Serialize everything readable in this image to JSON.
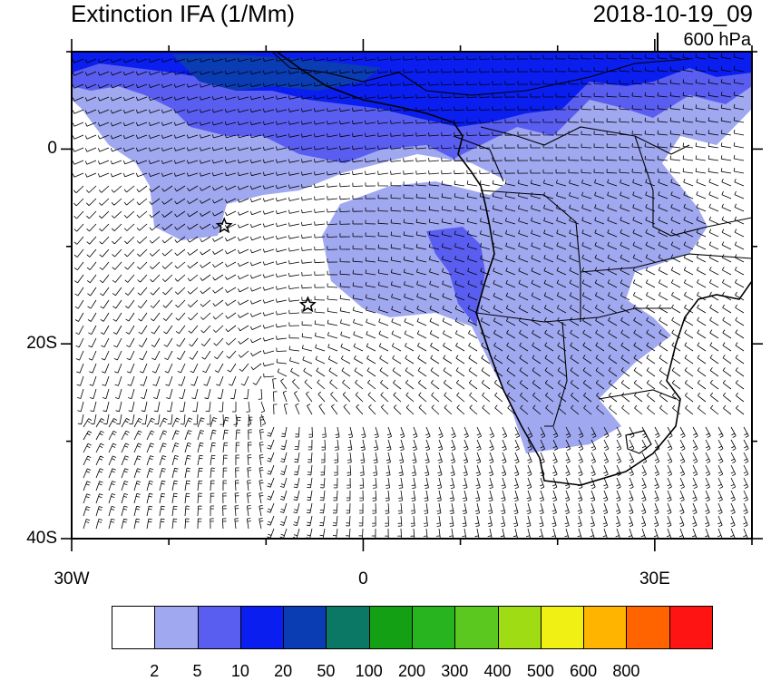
{
  "title": "Extinction IFA (1/Mm)",
  "datetime": "2018-10-19_09",
  "pressure_level": "600 hPa",
  "axes": {
    "lon_ticks": [
      {
        "label": "30W",
        "lon": -30
      },
      {
        "label": "0",
        "lon": 0
      },
      {
        "label": "30E",
        "lon": 30
      }
    ],
    "lat_ticks": [
      {
        "label": "0",
        "lat": 0
      },
      {
        "label": "20S",
        "lat": -20
      },
      {
        "label": "40S",
        "lat": -40
      }
    ],
    "lon_range": [
      -30,
      40
    ],
    "lat_range": [
      -40,
      10
    ]
  },
  "colorbar": {
    "colors": [
      "#ffffff",
      "#a0a8f0",
      "#5a5ef0",
      "#0a1ef0",
      "#0a3cb4",
      "#0a7864",
      "#14a014",
      "#28b41e",
      "#5ac81e",
      "#a0dc14",
      "#f0f014",
      "#ffb400",
      "#ff6400",
      "#ff1414"
    ],
    "labels": [
      "2",
      "5",
      "10",
      "20",
      "50",
      "100",
      "200",
      "300",
      "400",
      "500",
      "600",
      "800"
    ]
  },
  "markers": [
    {
      "name": "star",
      "lon": -14.3,
      "lat": -7.9
    },
    {
      "name": "star",
      "lon": -5.7,
      "lat": -16.0
    }
  ]
}
